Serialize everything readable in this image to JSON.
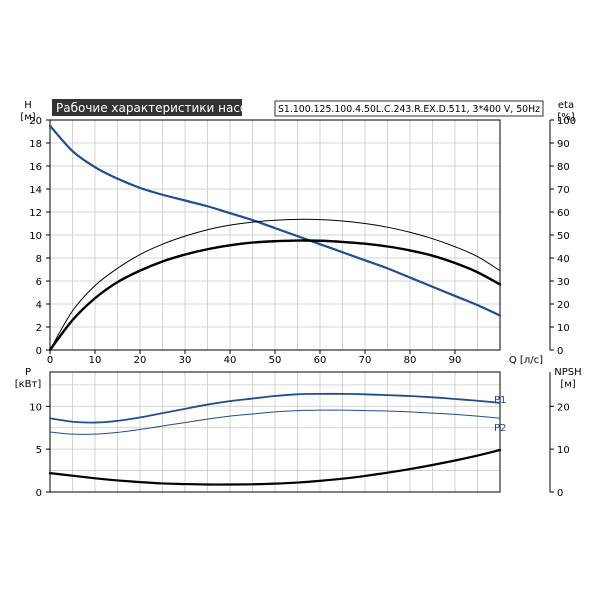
{
  "chart_data": [
    {
      "type": "line",
      "title": "Рабочие характеристики насоса",
      "subtitle": "S1.100.125.100.4.50L.C.243.R.EX.D.511, 3*400 V, 50Hz",
      "xlabel": "Q [л/с]",
      "ylabel": "H",
      "ylabel_unit": "[м]",
      "y2label": "eta",
      "y2label_unit": "[%]",
      "xlim": [
        0,
        100
      ],
      "ylim": [
        0,
        20
      ],
      "y2lim": [
        0,
        100
      ],
      "xticks": [
        "0",
        "10",
        "20",
        "30",
        "40",
        "50",
        "60",
        "70",
        "80",
        "90"
      ],
      "yticks": [
        "0",
        "2",
        "4",
        "6",
        "8",
        "10",
        "12",
        "14",
        "16",
        "18",
        "20"
      ],
      "y2ticks": [
        "0",
        "10",
        "20",
        "30",
        "40",
        "50",
        "60",
        "70",
        "80",
        "90",
        "100"
      ],
      "grid": true,
      "series": [
        {
          "key": "H",
          "axis": "left",
          "color": "#1f4e8c",
          "width": 2.2,
          "x": [
            0,
            5,
            10,
            15,
            20,
            25,
            30,
            35,
            40,
            45,
            50,
            55,
            60,
            65,
            70,
            75,
            80,
            85,
            90,
            95,
            100
          ],
          "y": [
            19.5,
            17.3,
            15.9,
            14.9,
            14.1,
            13.5,
            13.0,
            12.5,
            11.9,
            11.3,
            10.6,
            9.9,
            9.2,
            8.5,
            7.8,
            7.1,
            6.3,
            5.5,
            4.7,
            3.9,
            3.0
          ]
        },
        {
          "key": "eta1",
          "axis": "right",
          "color": "#000000",
          "width": 2.4,
          "x": [
            0,
            5,
            10,
            15,
            20,
            25,
            30,
            35,
            40,
            45,
            50,
            55,
            60,
            65,
            70,
            75,
            80,
            85,
            90,
            95,
            100
          ],
          "y": [
            0,
            13,
            22.5,
            29.5,
            34.5,
            38.5,
            41.5,
            43.8,
            45.5,
            46.7,
            47.3,
            47.6,
            47.5,
            47.0,
            46.2,
            45.0,
            43.3,
            41.0,
            37.8,
            33.8,
            28.5
          ]
        },
        {
          "key": "eta2",
          "axis": "right",
          "color": "#000000",
          "width": 1,
          "x": [
            0,
            5,
            10,
            15,
            20,
            25,
            30,
            35,
            40,
            45,
            50,
            55,
            60,
            65,
            70,
            75,
            80,
            85,
            90,
            95,
            100
          ],
          "y": [
            0,
            17,
            28,
            35.5,
            41.5,
            46,
            49.5,
            52.3,
            54.3,
            55.6,
            56.4,
            56.8,
            56.7,
            56.1,
            55.0,
            53.4,
            51.2,
            48.4,
            44.9,
            40.6,
            34.5
          ]
        }
      ]
    },
    {
      "type": "line",
      "ylabel": "P",
      "ylabel_unit": "[кВт]",
      "y2label": "NPSH",
      "y2label_unit": "[м]",
      "xlim": [
        0,
        100
      ],
      "ylim": [
        0,
        14
      ],
      "y2lim": [
        0,
        28
      ],
      "yticks": [
        "0",
        "5",
        "10"
      ],
      "y2ticks": [
        "0",
        "10",
        "20"
      ],
      "grid": true,
      "series": [
        {
          "key": "P1",
          "name": "P1",
          "axis": "left",
          "color": "#1f4e8c",
          "width": 1.8,
          "x": [
            0,
            5,
            10,
            15,
            20,
            25,
            30,
            35,
            40,
            45,
            50,
            55,
            60,
            65,
            70,
            75,
            80,
            85,
            90,
            95,
            100
          ],
          "y": [
            8.6,
            8.2,
            8.1,
            8.3,
            8.7,
            9.2,
            9.7,
            10.2,
            10.6,
            10.9,
            11.2,
            11.4,
            11.45,
            11.45,
            11.4,
            11.3,
            11.2,
            11.05,
            10.85,
            10.65,
            10.4
          ]
        },
        {
          "key": "P2",
          "name": "P2",
          "axis": "left",
          "color": "#1f4e8c",
          "width": 1,
          "x": [
            0,
            5,
            10,
            15,
            20,
            25,
            30,
            35,
            40,
            45,
            50,
            55,
            60,
            65,
            70,
            75,
            80,
            85,
            90,
            95,
            100
          ],
          "y": [
            7.0,
            6.75,
            6.75,
            6.95,
            7.3,
            7.7,
            8.1,
            8.5,
            8.85,
            9.1,
            9.35,
            9.5,
            9.55,
            9.55,
            9.5,
            9.45,
            9.35,
            9.2,
            9.05,
            8.85,
            8.6
          ]
        },
        {
          "key": "NPSH",
          "axis": "right",
          "color": "#000000",
          "width": 2.2,
          "x": [
            0,
            5,
            10,
            15,
            20,
            25,
            30,
            35,
            40,
            45,
            50,
            55,
            60,
            65,
            70,
            75,
            80,
            85,
            90,
            95,
            100
          ],
          "y": [
            4.4,
            3.8,
            3.2,
            2.7,
            2.3,
            2.0,
            1.85,
            1.75,
            1.75,
            1.8,
            1.95,
            2.2,
            2.6,
            3.1,
            3.75,
            4.5,
            5.35,
            6.3,
            7.35,
            8.5,
            9.8
          ]
        }
      ]
    }
  ]
}
